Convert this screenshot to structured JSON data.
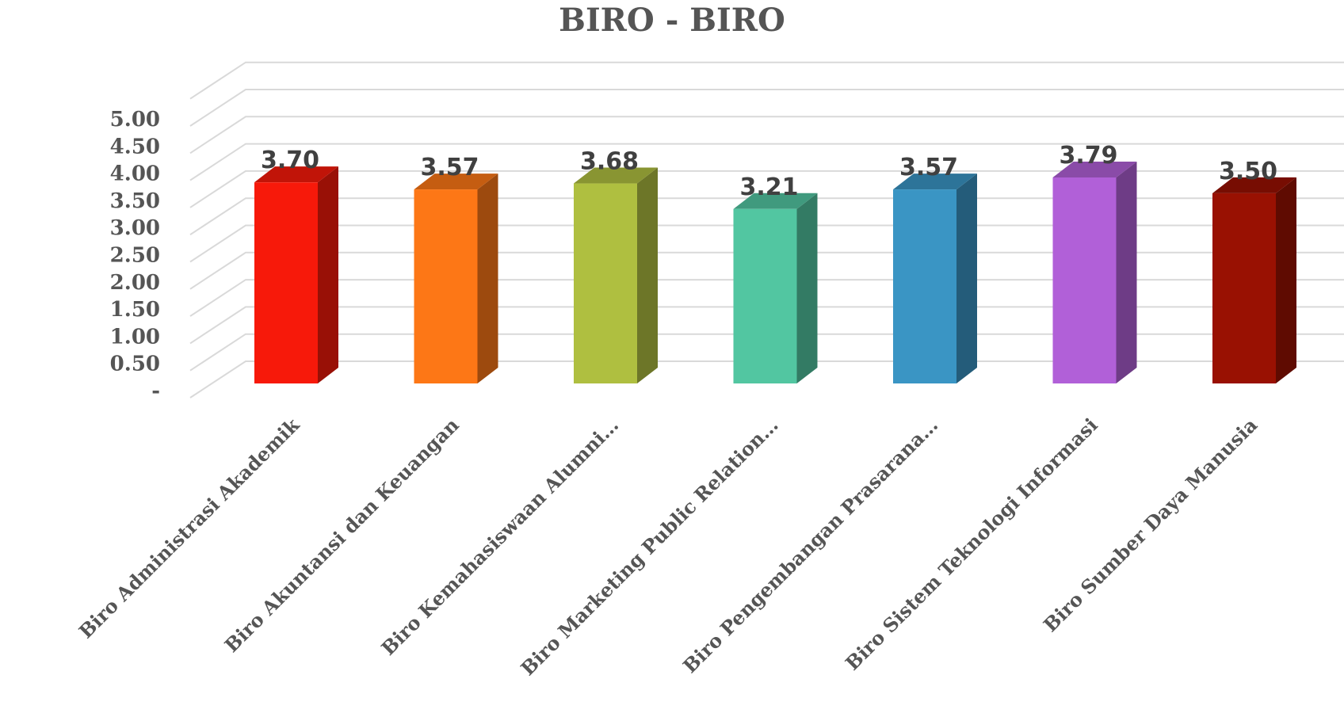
{
  "chart_data": {
    "type": "bar",
    "title": "BIRO - BIRO",
    "xlabel": "",
    "ylabel": "",
    "three_d": true,
    "grid": true,
    "legend": "none",
    "ylim": [
      0,
      5
    ],
    "yticks": [
      "-",
      "0.50",
      "1.00",
      "1.50",
      "2.00",
      "2.50",
      "3.00",
      "3.50",
      "4.00",
      "4.50",
      "5.00"
    ],
    "categories": [
      "Biro Administrasi Akademik",
      "Biro Akuntansi dan Keuangan",
      "Biro Kemahasiswaan Alumni…",
      "Biro Marketing Public Relation…",
      "Biro Pengembangan Prasarana…",
      "Biro Sistem Teknologi Informasi",
      "Biro Sumber Daya Manusia"
    ],
    "values": [
      3.7,
      3.57,
      3.68,
      3.21,
      3.57,
      3.79,
      3.5
    ],
    "data_labels": [
      "3.70",
      "3.57",
      "3.68",
      "3.21",
      "3.57",
      "3.79",
      "3.50"
    ],
    "colors": [
      "#F7190A",
      "#FD7716",
      "#AFBF40",
      "#52C6A1",
      "#3A95C4",
      "#B160D8",
      "#991102"
    ]
  }
}
